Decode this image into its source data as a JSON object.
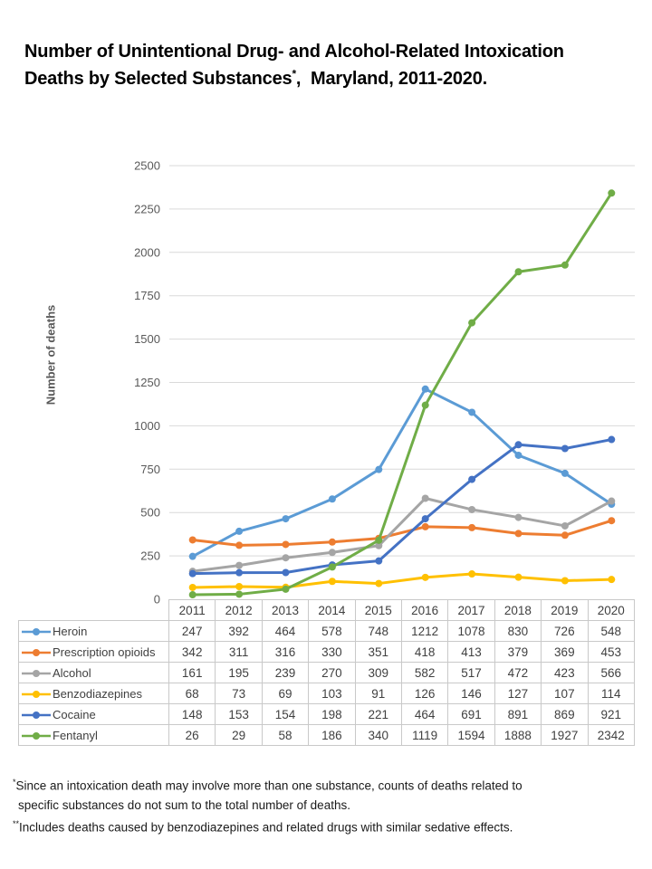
{
  "title": {
    "line1": "Number of Unintentional Drug- and Alcohol-Related Intoxication",
    "line2_pre": "Deaths by Selected Substances",
    "sup": "*",
    "line2_post": ",  Maryland, 2011-2020."
  },
  "chart_data": {
    "type": "line",
    "title": "Number of Unintentional Drug- and Alcohol-Related Intoxication Deaths by Selected Substances, Maryland, 2011-2020",
    "ylabel": "Number of deaths",
    "xlabel": "",
    "categories": [
      "2011",
      "2012",
      "2013",
      "2014",
      "2015",
      "2016",
      "2017",
      "2018",
      "2019",
      "2020"
    ],
    "series": [
      {
        "name": "Heroin",
        "color": "#5B9BD5",
        "values": [
          247,
          392,
          464,
          578,
          748,
          1212,
          1078,
          830,
          726,
          548
        ]
      },
      {
        "name": "Prescription opioids",
        "color": "#ED7D31",
        "values": [
          342,
          311,
          316,
          330,
          351,
          418,
          413,
          379,
          369,
          453
        ]
      },
      {
        "name": "Alcohol",
        "color": "#A5A5A5",
        "values": [
          161,
          195,
          239,
          270,
          309,
          582,
          517,
          472,
          423,
          566
        ]
      },
      {
        "name": "Benzodiazepines",
        "color": "#FFC000",
        "values": [
          68,
          73,
          69,
          103,
          91,
          126,
          146,
          127,
          107,
          114
        ]
      },
      {
        "name": "Cocaine",
        "color": "#4472C4",
        "values": [
          148,
          153,
          154,
          198,
          221,
          464,
          691,
          891,
          869,
          921
        ]
      },
      {
        "name": "Fentanyl",
        "color": "#70AD47",
        "values": [
          26,
          29,
          58,
          186,
          340,
          1119,
          1594,
          1888,
          1927,
          2342
        ]
      }
    ],
    "ylim": [
      0,
      2500
    ],
    "ytick_step": 250,
    "grid": true,
    "legend_position": "data-table-left-column",
    "gridline_color": "#D9D9D9",
    "tick_label_color": "#595959"
  },
  "footnotes": {
    "fn1_sup": "*",
    "fn1_line1": "Since an intoxication death may involve more than one substance, counts of deaths related to",
    "fn1_line2": "specific substances do not sum to the total number of deaths.",
    "fn2_sup": "**",
    "fn2_text": "Includes deaths caused by benzodiazepines and related drugs with similar sedative effects."
  }
}
